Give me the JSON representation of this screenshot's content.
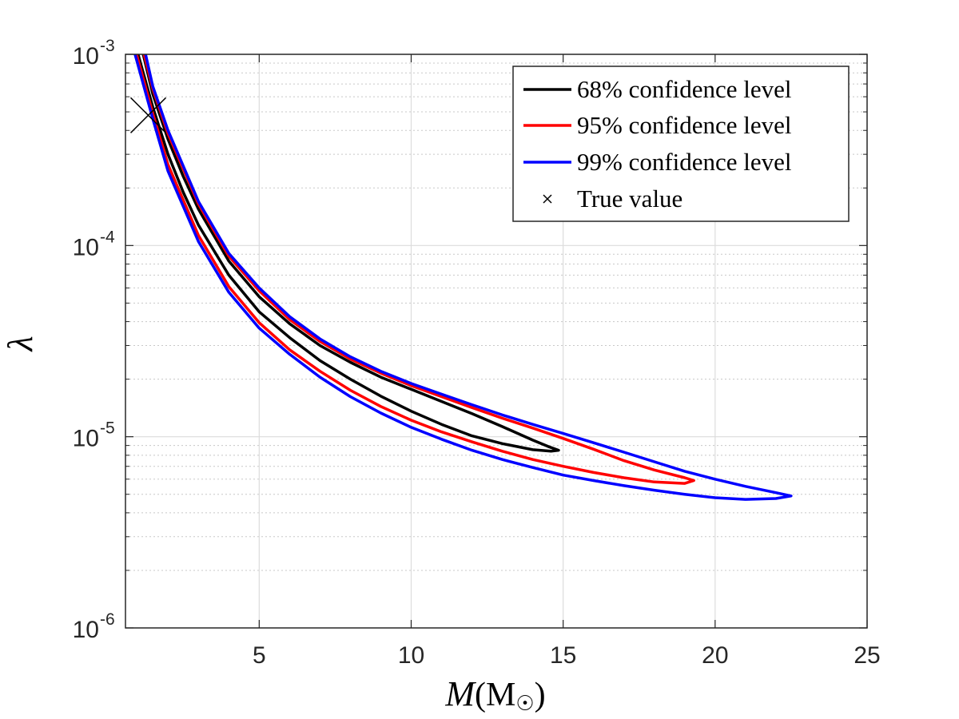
{
  "chart_data": {
    "type": "line",
    "title": "",
    "xlabel": "M(M☉)",
    "xlabel_parts": {
      "script": "M",
      "open": "(",
      "unit": "M",
      "sub": "☉",
      "close": ")"
    },
    "ylabel": "λ",
    "xlim": [
      0.6,
      25
    ],
    "ylim": [
      1e-06,
      0.001
    ],
    "yscale": "log",
    "grid": "on",
    "xticks": [
      {
        "value": 5,
        "label": "5"
      },
      {
        "value": 10,
        "label": "10"
      },
      {
        "value": 15,
        "label": "15"
      },
      {
        "value": 20,
        "label": "20"
      },
      {
        "value": 25,
        "label": "25"
      }
    ],
    "yticks": [
      {
        "value": 0.001,
        "base": "10",
        "exp": "-3"
      },
      {
        "value": 0.0001,
        "base": "10",
        "exp": "-4"
      },
      {
        "value": 1e-05,
        "base": "10",
        "exp": "-5"
      },
      {
        "value": 1e-06,
        "base": "10",
        "exp": "-6"
      }
    ],
    "legend_position": "top-right",
    "series": [
      {
        "name": "68% confidence level",
        "color": "#000000",
        "points": [
          [
            1.17,
            0.00102
          ],
          [
            1.5,
            0.00062
          ],
          [
            2,
            0.00036
          ],
          [
            2.5,
            0.00023
          ],
          [
            3,
            0.000155
          ],
          [
            4,
            8.3e-05
          ],
          [
            5,
            5.4e-05
          ],
          [
            6,
            3.9e-05
          ],
          [
            7,
            3e-05
          ],
          [
            8,
            2.45e-05
          ],
          [
            9,
            2.05e-05
          ],
          [
            10,
            1.77e-05
          ],
          [
            11,
            1.53e-05
          ],
          [
            12,
            1.32e-05
          ],
          [
            13,
            1.13e-05
          ],
          [
            14,
            9.6e-06
          ],
          [
            14.5,
            8.9e-06
          ],
          [
            14.85,
            8.5e-06
          ],
          [
            14.6,
            8.4e-06
          ],
          [
            14,
            8.55e-06
          ],
          [
            13,
            9.2e-06
          ],
          [
            12,
            1.01e-05
          ],
          [
            11,
            1.16e-05
          ],
          [
            10,
            1.36e-05
          ],
          [
            9,
            1.63e-05
          ],
          [
            8,
            2e-05
          ],
          [
            7,
            2.5e-05
          ],
          [
            6,
            3.3e-05
          ],
          [
            5,
            4.5e-05
          ],
          [
            4,
            7e-05
          ],
          [
            3,
            0.000128
          ],
          [
            2.5,
            0.00019
          ],
          [
            2,
            0.0003
          ],
          [
            1.5,
            0.00053
          ],
          [
            1.0,
            0.00102
          ]
        ]
      },
      {
        "name": "95% confidence level",
        "color": "#ff0000",
        "points": [
          [
            1.2,
            0.00102
          ],
          [
            1.5,
            0.00066
          ],
          [
            2,
            0.000385
          ],
          [
            3,
            0.000165
          ],
          [
            4,
            8.8e-05
          ],
          [
            5,
            5.8e-05
          ],
          [
            6,
            4.1e-05
          ],
          [
            7,
            3.15e-05
          ],
          [
            8,
            2.55e-05
          ],
          [
            9,
            2.15e-05
          ],
          [
            10,
            1.85e-05
          ],
          [
            11,
            1.62e-05
          ],
          [
            12,
            1.42e-05
          ],
          [
            13,
            1.25e-05
          ],
          [
            14,
            1.11e-05
          ],
          [
            15,
            9.8e-06
          ],
          [
            16,
            8.6e-06
          ],
          [
            17,
            7.5e-06
          ],
          [
            18,
            6.7e-06
          ],
          [
            19,
            6.1e-06
          ],
          [
            19.3,
            5.9e-06
          ],
          [
            19,
            5.7e-06
          ],
          [
            18,
            5.8e-06
          ],
          [
            17,
            6.1e-06
          ],
          [
            16,
            6.5e-06
          ],
          [
            15,
            7e-06
          ],
          [
            14,
            7.6e-06
          ],
          [
            13,
            8.4e-06
          ],
          [
            12,
            9.4e-06
          ],
          [
            11,
            1.06e-05
          ],
          [
            10,
            1.22e-05
          ],
          [
            9,
            1.44e-05
          ],
          [
            8,
            1.75e-05
          ],
          [
            7,
            2.2e-05
          ],
          [
            6,
            2.85e-05
          ],
          [
            5,
            3.95e-05
          ],
          [
            4,
            6.1e-05
          ],
          [
            3,
            0.000113
          ],
          [
            2,
            0.000265
          ],
          [
            1.5,
            0.00049
          ],
          [
            0.95,
            0.00102
          ]
        ]
      },
      {
        "name": "99% confidence level",
        "color": "#0000ff",
        "points": [
          [
            1.25,
            0.00102
          ],
          [
            1.5,
            0.00068
          ],
          [
            2,
            0.0004
          ],
          [
            3,
            0.00017
          ],
          [
            4,
            9.1e-05
          ],
          [
            5,
            6e-05
          ],
          [
            6,
            4.25e-05
          ],
          [
            7,
            3.25e-05
          ],
          [
            8,
            2.62e-05
          ],
          [
            9,
            2.2e-05
          ],
          [
            10,
            1.9e-05
          ],
          [
            11,
            1.67e-05
          ],
          [
            12,
            1.47e-05
          ],
          [
            13,
            1.3e-05
          ],
          [
            14,
            1.16e-05
          ],
          [
            15,
            1.04e-05
          ],
          [
            16,
            9.3e-06
          ],
          [
            17,
            8.3e-06
          ],
          [
            18,
            7.4e-06
          ],
          [
            19,
            6.6e-06
          ],
          [
            20,
            6e-06
          ],
          [
            21,
            5.5e-06
          ],
          [
            22,
            5.1e-06
          ],
          [
            22.5,
            4.9e-06
          ],
          [
            22,
            4.75e-06
          ],
          [
            21,
            4.7e-06
          ],
          [
            20,
            4.8e-06
          ],
          [
            19,
            5e-06
          ],
          [
            18,
            5.25e-06
          ],
          [
            17,
            5.55e-06
          ],
          [
            16,
            5.9e-06
          ],
          [
            15,
            6.3e-06
          ],
          [
            14,
            6.9e-06
          ],
          [
            13,
            7.6e-06
          ],
          [
            12,
            8.5e-06
          ],
          [
            11,
            9.7e-06
          ],
          [
            10,
            1.12e-05
          ],
          [
            9,
            1.33e-05
          ],
          [
            8,
            1.62e-05
          ],
          [
            7,
            2.05e-05
          ],
          [
            6,
            2.7e-05
          ],
          [
            5,
            3.7e-05
          ],
          [
            4,
            5.7e-05
          ],
          [
            3,
            0.000105
          ],
          [
            2,
            0.000245
          ],
          [
            1.5,
            0.00046
          ],
          [
            0.9,
            0.00102
          ]
        ]
      }
    ],
    "markers": [
      {
        "name": "True value",
        "symbol": "x",
        "color": "#000000",
        "x": 1.35,
        "y": 0.00048
      }
    ]
  }
}
